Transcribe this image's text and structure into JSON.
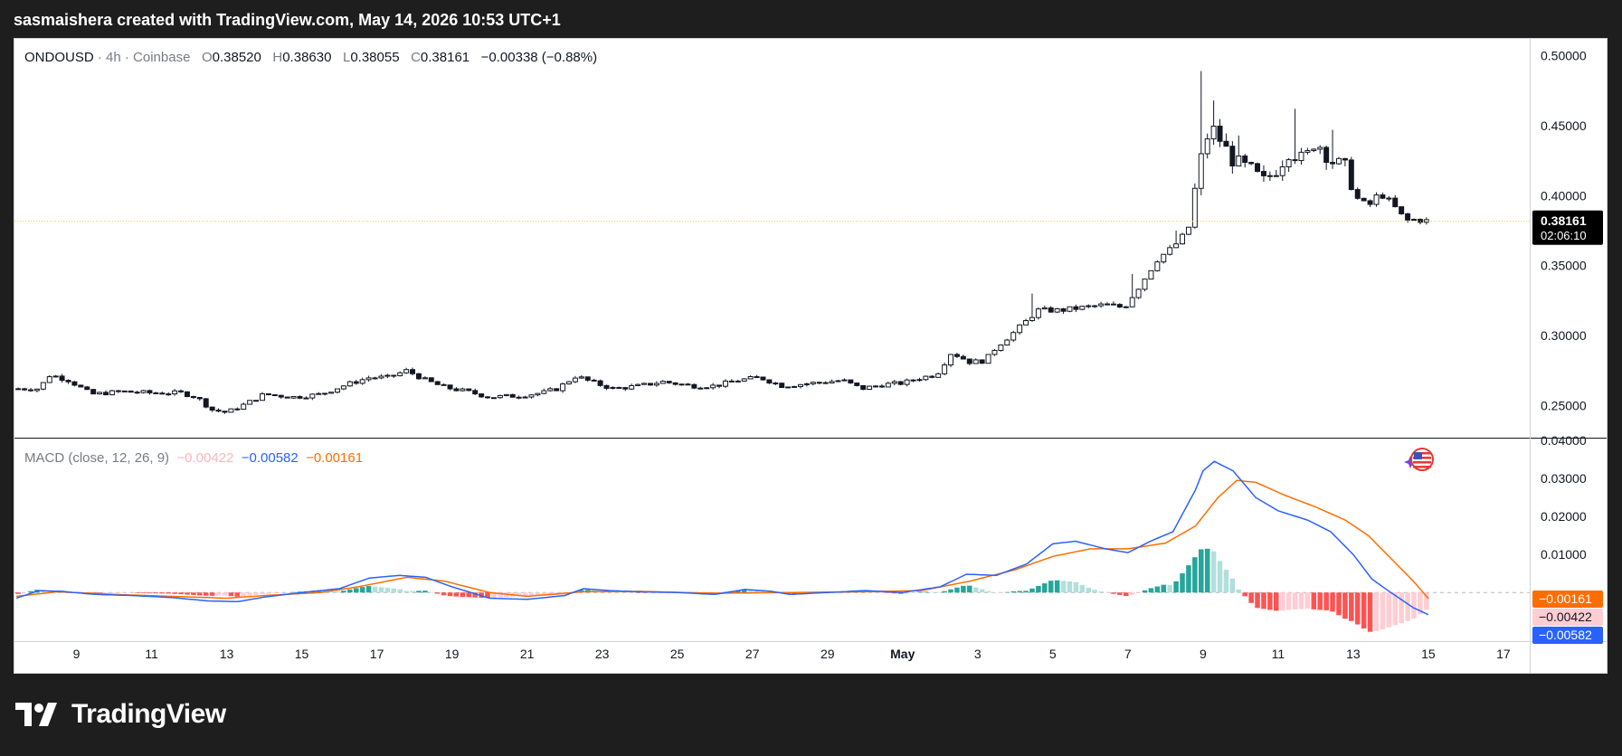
{
  "header": {
    "caption": "sasmaishera created with TradingView.com, May 14, 2026 10:53 UTC+1"
  },
  "legend": {
    "symbol": "ONDOUSD",
    "sep1": "·",
    "interval": "4h",
    "sep2": "·",
    "exchange": "Coinbase",
    "o_label": "O",
    "o_value": "0.38520",
    "h_label": "H",
    "h_value": "0.38630",
    "l_label": "L",
    "l_value": "0.38055",
    "c_label": "C",
    "c_value": "0.38161",
    "change": "−0.00338 (−0.88%)"
  },
  "macd_legend": {
    "title": "MACD (close, 12, 26, 9)",
    "hist_value": "−0.00422",
    "macd_value": "−0.00582",
    "signal_value": "−0.00161"
  },
  "footer": {
    "brand": "TradingView"
  },
  "colors": {
    "up_body": "#ffffff",
    "down_body": "#131722",
    "wick": "#131722",
    "macd_line": "#2962ff",
    "signal_line": "#ff6d00",
    "hist_up_strong": "#26a69a",
    "hist_up_weak": "#b2dfdb",
    "hist_down_strong": "#ff5252",
    "hist_down_weak": "#ffcdd2",
    "grid": "#f0f3fa",
    "axis_text": "#131722"
  },
  "chart_data": [
    {
      "type": "candlestick",
      "title": "ONDOUSD · 4h · Coinbase",
      "price_axis_ticks": [
        "0.50000",
        "0.45000",
        "0.40000",
        "0.35000",
        "0.30000",
        "0.25000"
      ],
      "ylim": [
        0.227,
        0.512
      ],
      "time_axis_ticks": [
        "9",
        "11",
        "13",
        "15",
        "17",
        "19",
        "21",
        "23",
        "25",
        "27",
        "29",
        "May",
        "3",
        "5",
        "7",
        "9",
        "11",
        "13",
        "15",
        "17"
      ],
      "last_price_label": "0.38161",
      "countdown_label": "02:06:10",
      "last_price": 0.38161,
      "x_range_days": [
        7.35,
        47.7
      ],
      "x_ticks_day_index": [
        9,
        11,
        13,
        15,
        17,
        19,
        21,
        23,
        25,
        27,
        29,
        31,
        33,
        35,
        37,
        39,
        41,
        43,
        45,
        47
      ],
      "close_anchors": [
        [
          8.0,
          0.262
        ],
        [
          8.3,
          0.272
        ],
        [
          8.8,
          0.268
        ],
        [
          9.4,
          0.258
        ],
        [
          10.2,
          0.26
        ],
        [
          11.0,
          0.259
        ],
        [
          11.8,
          0.259
        ],
        [
          12.2,
          0.256
        ],
        [
          12.6,
          0.247
        ],
        [
          13.0,
          0.245
        ],
        [
          13.5,
          0.251
        ],
        [
          14.0,
          0.258
        ],
        [
          14.8,
          0.256
        ],
        [
          15.5,
          0.258
        ],
        [
          16.2,
          0.265
        ],
        [
          16.8,
          0.27
        ],
        [
          17.3,
          0.27
        ],
        [
          17.8,
          0.275
        ],
        [
          18.3,
          0.268
        ],
        [
          18.8,
          0.263
        ],
        [
          19.4,
          0.26
        ],
        [
          20.0,
          0.256
        ],
        [
          20.8,
          0.257
        ],
        [
          21.4,
          0.259
        ],
        [
          21.8,
          0.262
        ],
        [
          22.3,
          0.271
        ],
        [
          22.8,
          0.266
        ],
        [
          23.3,
          0.262
        ],
        [
          24.0,
          0.264
        ],
        [
          24.6,
          0.267
        ],
        [
          25.4,
          0.264
        ],
        [
          26.0,
          0.264
        ],
        [
          26.6,
          0.268
        ],
        [
          27.2,
          0.27
        ],
        [
          27.8,
          0.264
        ],
        [
          28.6,
          0.266
        ],
        [
          29.4,
          0.268
        ],
        [
          29.9,
          0.262
        ],
        [
          30.5,
          0.265
        ],
        [
          31.0,
          0.266
        ],
        [
          31.5,
          0.27
        ],
        [
          31.9,
          0.272
        ],
        [
          32.3,
          0.288
        ],
        [
          32.8,
          0.281
        ],
        [
          33.2,
          0.282
        ],
        [
          33.5,
          0.292
        ],
        [
          34.0,
          0.303
        ],
        [
          34.6,
          0.318
        ],
        [
          35.2,
          0.318
        ],
        [
          35.8,
          0.32
        ],
        [
          36.4,
          0.322
        ],
        [
          36.9,
          0.32
        ],
        [
          37.3,
          0.335
        ],
        [
          37.8,
          0.355
        ],
        [
          38.2,
          0.363
        ],
        [
          38.6,
          0.375
        ],
        [
          38.9,
          0.422
        ],
        [
          39.2,
          0.45
        ],
        [
          39.5,
          0.438
        ],
        [
          39.8,
          0.425
        ],
        [
          40.3,
          0.418
        ],
        [
          40.6,
          0.41
        ],
        [
          41.0,
          0.42
        ],
        [
          41.3,
          0.432
        ],
        [
          41.7,
          0.425
        ],
        [
          42.0,
          0.44
        ],
        [
          42.4,
          0.425
        ],
        [
          42.8,
          0.42
        ],
        [
          43.1,
          0.398
        ],
        [
          43.4,
          0.392
        ],
        [
          43.7,
          0.402
        ],
        [
          44.0,
          0.395
        ],
        [
          44.4,
          0.382
        ],
        [
          44.7,
          0.383
        ],
        [
          45.0,
          0.38161
        ]
      ],
      "spike_highs": [
        [
          39.0,
          0.489
        ],
        [
          39.2,
          0.468
        ],
        [
          40.0,
          0.443
        ],
        [
          41.5,
          0.462
        ],
        [
          42.5,
          0.447
        ],
        [
          38.3,
          0.375
        ],
        [
          37.1,
          0.344
        ],
        [
          34.4,
          0.33
        ]
      ]
    },
    {
      "type": "macd",
      "title": "MACD (close, 12, 26, 9)",
      "ylim": [
        -0.0128,
        0.0405
      ],
      "axis_ticks": [
        "0.04000",
        "0.03000",
        "0.02000",
        "0.01000"
      ],
      "histogram_label": "−0.00422",
      "macd_label": "−0.00582",
      "signal_label": "−0.00161",
      "macd_anchors": [
        [
          7.4,
          -0.0015
        ],
        [
          8.0,
          0.0005
        ],
        [
          8.6,
          0.0003
        ],
        [
          9.5,
          -0.0005
        ],
        [
          10.5,
          -0.0008
        ],
        [
          11.5,
          -0.0013
        ],
        [
          12.5,
          -0.0022
        ],
        [
          13.3,
          -0.0024
        ],
        [
          14.0,
          -0.0012
        ],
        [
          15.0,
          0.0
        ],
        [
          16.0,
          0.001
        ],
        [
          16.8,
          0.0038
        ],
        [
          17.6,
          0.0045
        ],
        [
          18.3,
          0.004
        ],
        [
          19.0,
          0.0015
        ],
        [
          20.0,
          -0.0015
        ],
        [
          21.0,
          -0.0018
        ],
        [
          22.0,
          -0.0008
        ],
        [
          22.5,
          0.001
        ],
        [
          23.2,
          0.0005
        ],
        [
          24.0,
          0.0002
        ],
        [
          25.0,
          0.0
        ],
        [
          26.0,
          -0.0005
        ],
        [
          26.8,
          0.0008
        ],
        [
          27.5,
          0.0003
        ],
        [
          28.0,
          -0.0005
        ],
        [
          29.0,
          0.0
        ],
        [
          30.0,
          0.0005
        ],
        [
          31.0,
          0.0
        ],
        [
          32.0,
          0.0015
        ],
        [
          32.7,
          0.0048
        ],
        [
          33.5,
          0.0045
        ],
        [
          34.3,
          0.0075
        ],
        [
          35.0,
          0.0128
        ],
        [
          35.6,
          0.0135
        ],
        [
          36.4,
          0.0115
        ],
        [
          37.0,
          0.0105
        ],
        [
          37.6,
          0.0135
        ],
        [
          38.2,
          0.016
        ],
        [
          38.8,
          0.027
        ],
        [
          39.0,
          0.032
        ],
        [
          39.3,
          0.0345
        ],
        [
          39.8,
          0.032
        ],
        [
          40.4,
          0.025
        ],
        [
          41.0,
          0.0215
        ],
        [
          41.8,
          0.019
        ],
        [
          42.4,
          0.016
        ],
        [
          43.0,
          0.01
        ],
        [
          43.5,
          0.0035
        ],
        [
          44.0,
          0.0
        ],
        [
          44.6,
          -0.004
        ],
        [
          45.0,
          -0.00582
        ]
      ],
      "signal_anchors": [
        [
          7.4,
          -0.001
        ],
        [
          8.5,
          0.0002
        ],
        [
          10.0,
          -0.0005
        ],
        [
          11.5,
          -0.001
        ],
        [
          13.0,
          -0.0015
        ],
        [
          14.0,
          -0.0008
        ],
        [
          15.5,
          0.0
        ],
        [
          16.5,
          0.0015
        ],
        [
          17.8,
          0.004
        ],
        [
          18.8,
          0.003
        ],
        [
          20.0,
          0.0
        ],
        [
          21.0,
          -0.001
        ],
        [
          22.5,
          0.0002
        ],
        [
          24.0,
          0.0003
        ],
        [
          26.0,
          -0.0002
        ],
        [
          28.0,
          0.0
        ],
        [
          30.0,
          0.0002
        ],
        [
          31.5,
          0.0005
        ],
        [
          32.8,
          0.003
        ],
        [
          34.0,
          0.006
        ],
        [
          35.0,
          0.0095
        ],
        [
          36.0,
          0.0115
        ],
        [
          37.0,
          0.0115
        ],
        [
          38.0,
          0.013
        ],
        [
          38.8,
          0.0175
        ],
        [
          39.4,
          0.025
        ],
        [
          39.9,
          0.0295
        ],
        [
          40.4,
          0.029
        ],
        [
          41.2,
          0.0255
        ],
        [
          42.0,
          0.0225
        ],
        [
          42.8,
          0.019
        ],
        [
          43.4,
          0.015
        ],
        [
          44.0,
          0.009
        ],
        [
          44.6,
          0.003
        ],
        [
          45.0,
          -0.00161
        ]
      ]
    }
  ]
}
